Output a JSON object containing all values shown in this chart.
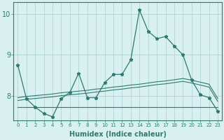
{
  "title": "",
  "xlabel": "Humidex (Indice chaleur)",
  "background_color": "#d8f0f0",
  "grid_color": "#aacfcf",
  "line_color": "#2e7b6e",
  "x_values": [
    0,
    1,
    2,
    3,
    4,
    5,
    6,
    7,
    8,
    9,
    10,
    11,
    12,
    13,
    14,
    15,
    16,
    17,
    18,
    19,
    20,
    21,
    22,
    23
  ],
  "series1": [
    8.75,
    7.92,
    7.72,
    7.56,
    7.48,
    7.93,
    8.08,
    8.55,
    7.95,
    7.95,
    8.32,
    8.52,
    8.52,
    8.88,
    10.1,
    9.58,
    9.4,
    9.45,
    9.22,
    9.0,
    8.38,
    8.02,
    7.95,
    7.62
  ],
  "series2": [
    7.95,
    7.98,
    8.0,
    8.02,
    8.04,
    8.07,
    8.09,
    8.11,
    8.13,
    8.16,
    8.18,
    8.21,
    8.23,
    8.26,
    8.28,
    8.31,
    8.34,
    8.36,
    8.39,
    8.42,
    8.38,
    8.33,
    8.28,
    7.93
  ],
  "series3": [
    7.88,
    7.91,
    7.93,
    7.95,
    7.97,
    8.0,
    8.02,
    8.04,
    8.06,
    8.09,
    8.11,
    8.14,
    8.16,
    8.19,
    8.21,
    8.24,
    8.27,
    8.29,
    8.32,
    8.35,
    8.31,
    8.26,
    8.21,
    7.86
  ],
  "series4": [
    7.72,
    7.72,
    7.72,
    7.72,
    7.72,
    7.72,
    7.72,
    7.72,
    7.72,
    7.72,
    7.72,
    7.72,
    7.72,
    7.72,
    7.72,
    7.72,
    7.72,
    7.72,
    7.72,
    7.72,
    7.72,
    7.72,
    7.72,
    7.72
  ],
  "ylim": [
    7.4,
    10.3
  ],
  "yticks": [
    8,
    9,
    10
  ],
  "xticks": [
    0,
    1,
    2,
    3,
    4,
    5,
    6,
    7,
    8,
    9,
    10,
    11,
    12,
    13,
    14,
    15,
    16,
    17,
    18,
    19,
    20,
    21,
    22,
    23
  ]
}
